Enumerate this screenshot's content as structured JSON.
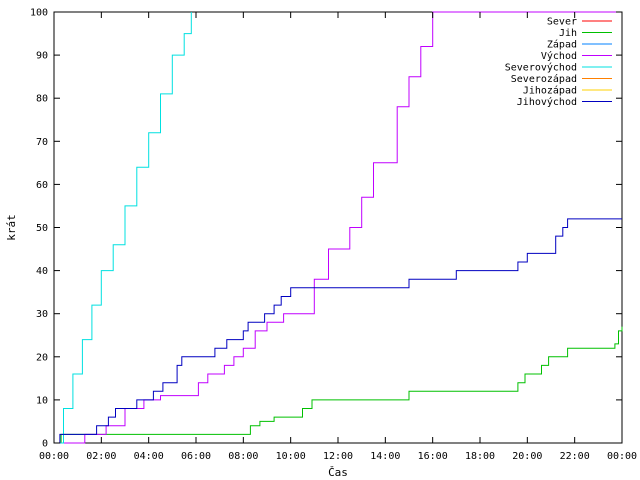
{
  "chart_data": {
    "type": "line",
    "title": "",
    "xlabel": "Čas",
    "ylabel": "krát",
    "xlim": [
      0,
      24
    ],
    "ylim": [
      0,
      100
    ],
    "x_ticks": [
      "00:00",
      "02:00",
      "04:00",
      "06:00",
      "08:00",
      "10:00",
      "12:00",
      "14:00",
      "16:00",
      "18:00",
      "20:00",
      "22:00",
      "00:00"
    ],
    "y_ticks": [
      0,
      10,
      20,
      30,
      40,
      50,
      60,
      70,
      80,
      90,
      100
    ],
    "grid": false,
    "legend_position": "top-right",
    "series": [
      {
        "name": "Sever",
        "color": "#ff0000",
        "x": [],
        "y": []
      },
      {
        "name": "Jih",
        "color": "#00c000",
        "x": [
          0.0,
          0.3,
          7.9,
          8.3,
          8.7,
          9.3,
          10.0,
          10.5,
          10.9,
          13.0,
          15.0,
          19.4,
          19.6,
          19.9,
          20.6,
          20.9,
          21.7,
          22.8,
          23.7,
          23.85,
          24.0
        ],
        "y": [
          0,
          2,
          2,
          4,
          5,
          6,
          6,
          8,
          10,
          10,
          12,
          12,
          14,
          16,
          18,
          20,
          22,
          22,
          23,
          26,
          27
        ]
      },
      {
        "name": "Západ",
        "color": "#0080ff",
        "x": [],
        "y": []
      },
      {
        "name": "Východ",
        "color": "#c000ff",
        "x": [
          0.0,
          0.9,
          1.3,
          2.2,
          3.0,
          3.8,
          4.5,
          5.8,
          6.1,
          6.5,
          7.2,
          7.6,
          8.0,
          8.5,
          9.0,
          9.7,
          10.7,
          11.0,
          11.6,
          12.5,
          13.0,
          13.5,
          14.5,
          15.0,
          15.5,
          16.0,
          24.0
        ],
        "y": [
          0,
          0,
          2,
          4,
          8,
          10,
          11,
          11,
          14,
          16,
          18,
          20,
          22,
          26,
          28,
          30,
          30,
          38,
          45,
          50,
          57,
          65,
          78,
          85,
          92,
          100,
          100
        ]
      },
      {
        "name": "Severovýchod",
        "color": "#00e0e0",
        "x": [
          0.0,
          0.4,
          0.8,
          1.2,
          1.6,
          2.0,
          2.5,
          3.0,
          3.5,
          4.0,
          4.5,
          5.0,
          5.5,
          5.8
        ],
        "y": [
          0,
          8,
          16,
          24,
          32,
          40,
          46,
          55,
          64,
          72,
          81,
          90,
          95,
          100
        ]
      },
      {
        "name": "Severozápad",
        "color": "#ff8000",
        "x": [],
        "y": []
      },
      {
        "name": "Jihozápad",
        "color": "#ffd000",
        "x": [],
        "y": []
      },
      {
        "name": "Jihovýchod",
        "color": "#0000c0",
        "x": [
          0.0,
          0.25,
          1.4,
          1.8,
          2.3,
          2.6,
          3.5,
          4.2,
          4.6,
          5.2,
          5.4,
          5.7,
          6.8,
          7.3,
          8.0,
          8.2,
          8.9,
          9.3,
          9.6,
          10.0,
          13.0,
          15.0,
          16.0,
          17.0,
          19.4,
          19.6,
          20.0,
          21.0,
          21.2,
          21.5,
          21.7,
          24.0
        ],
        "y": [
          0,
          2,
          2,
          4,
          6,
          8,
          10,
          12,
          14,
          18,
          20,
          20,
          22,
          24,
          26,
          28,
          30,
          32,
          34,
          36,
          36,
          38,
          38,
          40,
          40,
          42,
          44,
          44,
          48,
          50,
          52,
          52
        ]
      }
    ]
  }
}
